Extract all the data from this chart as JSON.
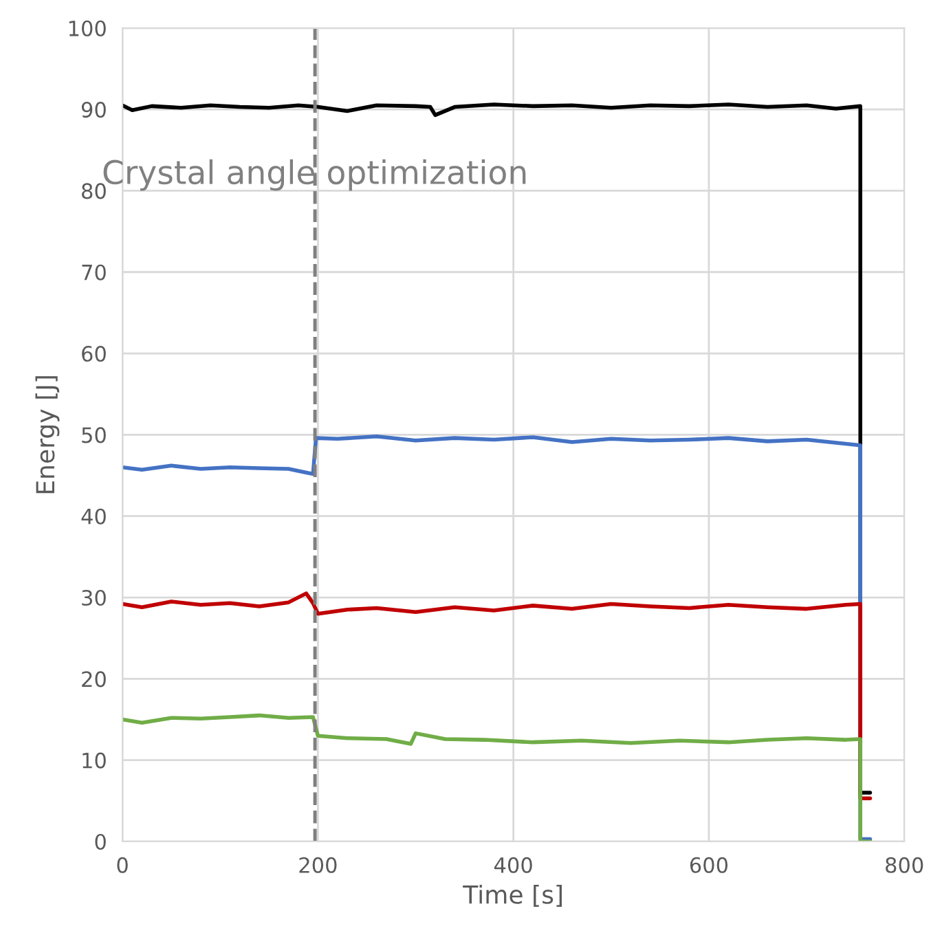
{
  "chart_data": {
    "type": "line",
    "xlabel": "Time [s]",
    "ylabel": "Energy [J]",
    "xlim": [
      0,
      800
    ],
    "ylim": [
      0,
      100
    ],
    "xticks": [
      0,
      200,
      400,
      600,
      800
    ],
    "yticks": [
      0,
      10,
      20,
      30,
      40,
      50,
      60,
      70,
      80,
      90,
      100
    ],
    "grid": true,
    "legend": false,
    "marker": "none",
    "line_style": "solid",
    "ref_lines": [
      {
        "axis": "x",
        "value": 197,
        "label": "Crystal angle optimization",
        "color": "#808080",
        "line_style": "dashed"
      }
    ],
    "series": [
      {
        "color": "#000000",
        "x": [
          0,
          10,
          30,
          60,
          90,
          120,
          150,
          180,
          200,
          230,
          260,
          300,
          315,
          320,
          340,
          380,
          420,
          460,
          500,
          540,
          580,
          620,
          660,
          700,
          730,
          755,
          755,
          765
        ],
        "values": [
          90.5,
          89.9,
          90.4,
          90.2,
          90.5,
          90.3,
          90.2,
          90.5,
          90.3,
          89.8,
          90.5,
          90.4,
          90.3,
          89.3,
          90.3,
          90.6,
          90.4,
          90.5,
          90.2,
          90.5,
          90.4,
          90.6,
          90.3,
          90.5,
          90.1,
          90.4,
          6,
          6
        ]
      },
      {
        "color": "#4472c4",
        "x": [
          0,
          20,
          50,
          80,
          110,
          140,
          170,
          190,
          195,
          198,
          220,
          260,
          300,
          340,
          380,
          420,
          460,
          500,
          540,
          580,
          620,
          660,
          700,
          740,
          755,
          755,
          765
        ],
        "values": [
          46,
          45.7,
          46.2,
          45.8,
          46,
          45.9,
          45.8,
          45.3,
          45.2,
          49.6,
          49.5,
          49.8,
          49.3,
          49.6,
          49.4,
          49.7,
          49.1,
          49.5,
          49.3,
          49.4,
          49.6,
          49.2,
          49.4,
          48.9,
          48.7,
          0.3,
          0.3
        ]
      },
      {
        "color": "#c00000",
        "x": [
          0,
          20,
          50,
          80,
          110,
          140,
          170,
          188,
          195,
          200,
          230,
          260,
          300,
          340,
          380,
          420,
          460,
          500,
          540,
          580,
          620,
          660,
          700,
          740,
          755,
          755,
          765
        ],
        "values": [
          29.2,
          28.8,
          29.5,
          29.1,
          29.3,
          28.9,
          29.4,
          30.5,
          29.3,
          28,
          28.5,
          28.7,
          28.2,
          28.8,
          28.4,
          29,
          28.6,
          29.2,
          28.9,
          28.7,
          29.1,
          28.8,
          28.6,
          29.1,
          29.2,
          5.3,
          5.3
        ]
      },
      {
        "color": "#70ad47",
        "x": [
          0,
          20,
          50,
          80,
          110,
          140,
          170,
          195,
          200,
          230,
          270,
          295,
          300,
          330,
          370,
          420,
          470,
          520,
          570,
          620,
          660,
          700,
          740,
          755,
          755,
          765
        ],
        "values": [
          15,
          14.6,
          15.2,
          15.1,
          15.3,
          15.5,
          15.2,
          15.3,
          13,
          12.7,
          12.6,
          12,
          13.3,
          12.6,
          12.5,
          12.2,
          12.4,
          12.1,
          12.4,
          12.2,
          12.5,
          12.7,
          12.5,
          12.6,
          0,
          0
        ]
      }
    ]
  }
}
